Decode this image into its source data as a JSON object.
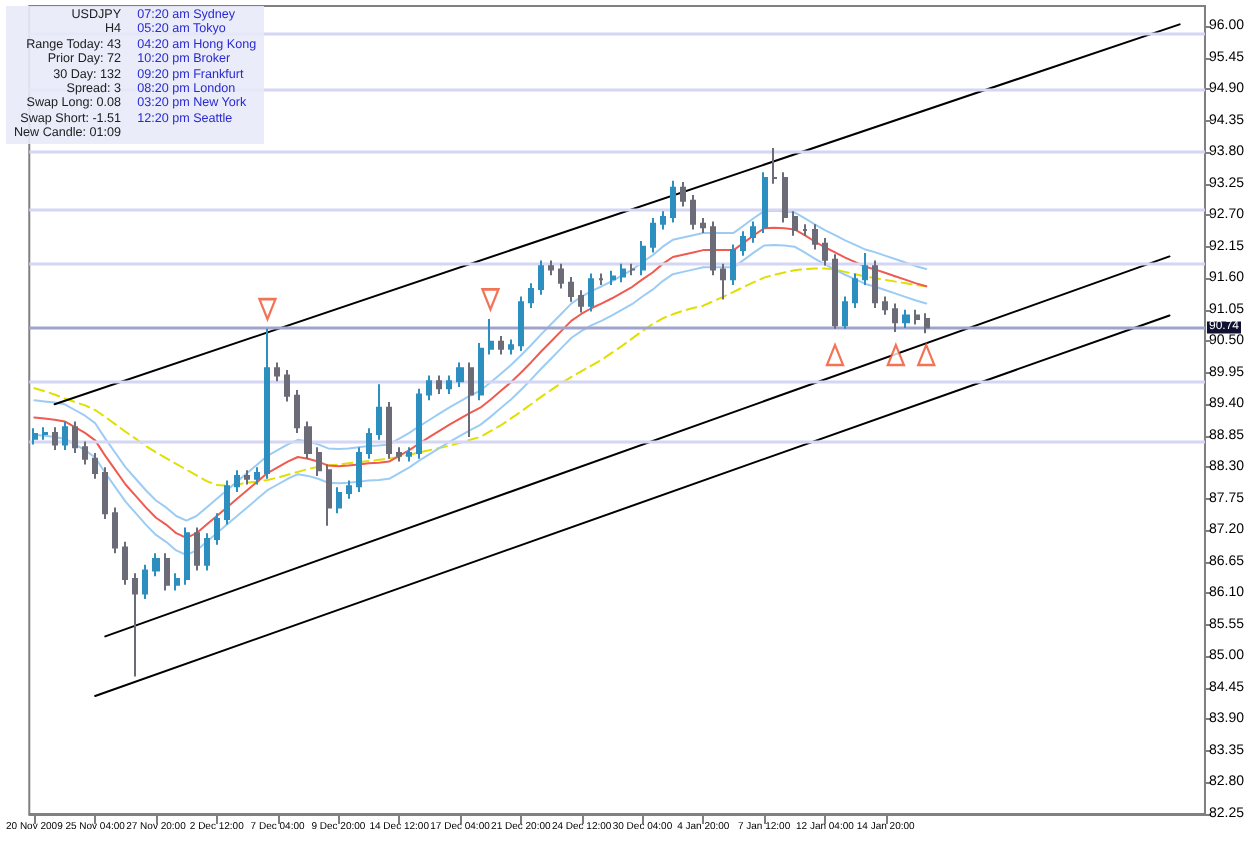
{
  "chart_data": {
    "type": "candlestick",
    "annotations": [
      "USDJPY",
      "H4",
      "Range Today: 43",
      "Prior Day: 72",
      "30 Day: 132",
      "Spread: 3",
      "Swap Long: 0.08",
      "Swap Short: -1.51",
      "New Candle: 01:09",
      "07:20 am Sydney",
      "05:20 am Tokyo",
      "04:20 am Hong Kong",
      "10:20 pm Broker",
      "09:20 pm Frankfurt",
      "08:20 pm London",
      "03:20 pm New York",
      "12:20 pm Seattle"
    ],
    "categories": [
      "20 Nov 2009",
      null,
      null,
      null,
      null,
      null,
      "25 Nov 04:00",
      null,
      null,
      null,
      null,
      null,
      "27 Nov 20:00",
      null,
      null,
      null,
      null,
      null,
      "2 Dec 12:00",
      null,
      null,
      null,
      null,
      null,
      "7 Dec 04:00",
      null,
      null,
      null,
      null,
      null,
      "9 Dec 20:00",
      null,
      null,
      null,
      null,
      null,
      "14 Dec 12:00",
      null,
      null,
      null,
      null,
      null,
      "17 Dec 04:00",
      null,
      null,
      null,
      null,
      null,
      "21 Dec 20:00",
      null,
      null,
      null,
      null,
      null,
      "24 Dec 12:00",
      null,
      null,
      null,
      null,
      null,
      "30 Dec 04:00",
      null,
      null,
      null,
      null,
      null,
      "4 Jan 20:00",
      null,
      null,
      null,
      null,
      null,
      "7 Jan 12:00",
      null,
      null,
      null,
      null,
      null,
      "12 Jan 04:00",
      null,
      null,
      null,
      null,
      null,
      "14 Jan 20:00",
      null,
      null,
      null,
      null,
      null,
      null,
      null,
      null,
      null,
      null,
      null,
      null,
      null,
      null,
      null,
      null,
      null,
      null,
      null,
      null,
      null,
      null,
      null,
      null,
      null,
      null,
      null,
      null,
      null,
      null,
      null
    ],
    "ylim": [
      82.25,
      96.35
    ],
    "yticks": [
      {
        "value": 82.25,
        "label": "82.25"
      },
      {
        "value": 82.8,
        "label": "82.80"
      },
      {
        "value": 83.35,
        "label": "83.35"
      },
      {
        "value": 83.9,
        "label": "83.90"
      },
      {
        "value": 84.45,
        "label": "84.45"
      },
      {
        "value": 85,
        "label": "85.00"
      },
      {
        "value": 85.55,
        "label": "85.55"
      },
      {
        "value": 86.1,
        "label": "86.10"
      },
      {
        "value": 86.65,
        "label": "86.65"
      },
      {
        "value": 87.2,
        "label": "87.20"
      },
      {
        "value": 87.75,
        "label": "87.75"
      },
      {
        "value": 88.3,
        "label": "88.30"
      },
      {
        "value": 88.85,
        "label": "88.85"
      },
      {
        "value": 89.4,
        "label": "89.40"
      },
      {
        "value": 89.95,
        "label": "89.95"
      },
      {
        "value": 90.5,
        "label": "90.50"
      },
      {
        "value": 91.05,
        "label": "91.05"
      },
      {
        "value": 91.6,
        "label": "91.60"
      },
      {
        "value": 92.15,
        "label": "92.15"
      },
      {
        "value": 92.7,
        "label": "92.70"
      },
      {
        "value": 93.25,
        "label": "93.25"
      },
      {
        "value": 93.8,
        "label": "93.80"
      },
      {
        "value": 94.35,
        "label": "94.35"
      },
      {
        "value": 94.9,
        "label": "94.90"
      },
      {
        "value": 95.45,
        "label": "95.45"
      },
      {
        "value": 96,
        "label": "96.00"
      }
    ],
    "ref_lines": [
      {
        "axis": "y",
        "value": 95.86,
        "color": "#d4d6f4"
      },
      {
        "axis": "y",
        "value": 94.9,
        "color": "#d4d6f4"
      },
      {
        "axis": "y",
        "value": 93.8,
        "color": "#d4d6f4"
      },
      {
        "axis": "y",
        "value": 92.8,
        "color": "#d4d6f4"
      },
      {
        "axis": "y",
        "value": 91.87,
        "color": "#d4d6f4"
      },
      {
        "axis": "y",
        "value": 89.78,
        "color": "#d4d6f4"
      },
      {
        "axis": "y",
        "value": 88.75,
        "color": "#d4d6f4"
      },
      {
        "axis": "y",
        "value": 90.74,
        "label": "90.74",
        "color": "#a0a4cc"
      }
    ],
    "series": [
      {
        "type": "candlestick",
        "ohlc": [
          [
            88.8,
            88.98,
            88.7,
            88.88
          ],
          [
            88.88,
            89.0,
            88.78,
            88.9
          ],
          [
            88.9,
            89.0,
            88.6,
            88.7
          ],
          [
            88.7,
            89.1,
            88.6,
            89.0
          ],
          [
            89.0,
            89.1,
            88.55,
            88.65
          ],
          [
            88.65,
            88.75,
            88.35,
            88.45
          ],
          [
            88.45,
            88.55,
            88.1,
            88.2
          ],
          [
            88.2,
            88.3,
            87.4,
            87.5
          ],
          [
            87.5,
            87.6,
            86.8,
            86.9
          ],
          [
            86.9,
            87.0,
            86.25,
            86.35
          ],
          [
            86.35,
            86.45,
            84.65,
            86.1
          ],
          [
            86.1,
            86.6,
            86.0,
            86.5
          ],
          [
            86.5,
            86.8,
            86.4,
            86.7
          ],
          [
            86.7,
            86.8,
            86.15,
            86.25
          ],
          [
            86.25,
            86.45,
            86.15,
            86.35
          ],
          [
            86.35,
            87.25,
            86.25,
            87.15
          ],
          [
            87.15,
            87.25,
            86.5,
            86.6
          ],
          [
            86.6,
            87.15,
            86.5,
            87.05
          ],
          [
            87.05,
            87.5,
            86.95,
            87.4
          ],
          [
            87.4,
            88.07,
            87.3,
            87.97
          ],
          [
            87.97,
            88.25,
            87.87,
            88.15
          ],
          [
            88.15,
            88.25,
            88.0,
            88.1
          ],
          [
            88.1,
            88.3,
            88.0,
            88.2
          ],
          [
            88.2,
            90.72,
            88.1,
            90.03
          ],
          [
            90.03,
            90.13,
            89.8,
            89.9
          ],
          [
            89.9,
            90.0,
            89.45,
            89.55
          ],
          [
            89.55,
            89.65,
            88.9,
            89.0
          ],
          [
            89.0,
            89.1,
            88.45,
            88.55
          ],
          [
            88.55,
            88.65,
            88.15,
            88.25
          ],
          [
            88.25,
            88.35,
            87.28,
            87.6
          ],
          [
            87.6,
            87.95,
            87.5,
            87.85
          ],
          [
            87.85,
            88.07,
            87.75,
            87.97
          ],
          [
            87.97,
            88.65,
            87.87,
            88.55
          ],
          [
            88.55,
            88.98,
            88.45,
            88.88
          ],
          [
            88.88,
            89.75,
            88.78,
            89.34
          ],
          [
            89.34,
            89.44,
            88.45,
            88.55
          ],
          [
            88.55,
            88.65,
            88.4,
            88.5
          ],
          [
            88.5,
            88.65,
            88.4,
            88.55
          ],
          [
            88.55,
            89.67,
            88.45,
            89.57
          ],
          [
            89.57,
            89.9,
            89.47,
            89.8
          ],
          [
            89.8,
            89.9,
            89.58,
            89.68
          ],
          [
            89.68,
            89.9,
            89.58,
            89.8
          ],
          [
            89.8,
            90.13,
            89.7,
            90.03
          ],
          [
            90.03,
            90.13,
            88.83,
            89.57
          ],
          [
            89.57,
            90.47,
            89.47,
            90.37
          ],
          [
            90.37,
            90.89,
            90.27,
            90.49
          ],
          [
            90.49,
            90.59,
            90.27,
            90.37
          ],
          [
            90.37,
            90.53,
            90.27,
            90.43
          ],
          [
            90.43,
            91.28,
            90.33,
            91.18
          ],
          [
            91.18,
            91.51,
            91.08,
            91.41
          ],
          [
            91.41,
            91.91,
            91.31,
            91.81
          ],
          [
            91.81,
            91.91,
            91.65,
            91.75
          ],
          [
            91.75,
            91.85,
            91.42,
            91.52
          ],
          [
            91.52,
            91.62,
            91.19,
            91.29
          ],
          [
            91.29,
            91.39,
            91.0,
            91.12
          ],
          [
            91.12,
            91.68,
            91.02,
            91.58
          ],
          [
            91.58,
            91.68,
            91.48,
            91.58
          ],
          [
            91.58,
            91.73,
            91.48,
            91.63
          ],
          [
            91.63,
            91.85,
            91.53,
            91.75
          ],
          [
            91.75,
            91.85,
            91.65,
            91.75
          ],
          [
            91.75,
            92.25,
            91.65,
            92.15
          ],
          [
            92.15,
            92.65,
            92.05,
            92.55
          ],
          [
            92.55,
            92.77,
            92.45,
            92.67
          ],
          [
            92.67,
            93.3,
            92.57,
            93.18
          ],
          [
            93.18,
            93.28,
            92.85,
            92.95
          ],
          [
            92.95,
            93.05,
            92.45,
            92.55
          ],
          [
            92.55,
            92.65,
            92.39,
            92.49
          ],
          [
            92.49,
            92.59,
            91.65,
            91.75
          ],
          [
            91.75,
            91.85,
            91.23,
            91.58
          ],
          [
            91.58,
            92.19,
            91.48,
            92.09
          ],
          [
            92.09,
            92.42,
            91.99,
            92.32
          ],
          [
            92.32,
            92.59,
            92.22,
            92.49
          ],
          [
            92.49,
            93.45,
            92.39,
            93.35
          ],
          [
            93.35,
            93.87,
            93.25,
            93.35
          ],
          [
            93.35,
            93.45,
            92.57,
            92.67
          ],
          [
            92.67,
            92.77,
            92.34,
            92.44
          ],
          [
            92.44,
            92.54,
            92.34,
            92.44
          ],
          [
            92.44,
            92.54,
            92.1,
            92.2
          ],
          [
            92.2,
            92.3,
            91.82,
            91.92
          ],
          [
            91.92,
            92.02,
            90.72,
            90.78
          ],
          [
            90.78,
            91.28,
            90.72,
            91.18
          ],
          [
            91.18,
            91.68,
            91.08,
            91.58
          ],
          [
            91.58,
            92.04,
            91.48,
            91.81
          ],
          [
            91.81,
            91.91,
            91.08,
            91.18
          ],
          [
            91.18,
            91.28,
            90.96,
            91.06
          ],
          [
            91.06,
            91.16,
            90.66,
            90.83
          ],
          [
            90.83,
            91.05,
            90.73,
            90.95
          ],
          [
            90.95,
            91.05,
            90.79,
            90.89
          ],
          [
            90.89,
            90.99,
            90.64,
            90.74
          ],
          null,
          null,
          null,
          null,
          null,
          null,
          null,
          null,
          null,
          null,
          null,
          null,
          null,
          null,
          null,
          null,
          null,
          null,
          null,
          null,
          null,
          null,
          null,
          null,
          null,
          null,
          null
        ],
        "colors": [
          "#2c8fc0",
          "#2c8fc0",
          "#6c6c78",
          "#2c8fc0",
          "#6c6c78",
          "#6c6c78",
          "#6c6c78",
          "#6c6c78",
          "#6c6c78",
          "#6c6c78",
          "#6c6c78",
          "#2c8fc0",
          "#2c8fc0",
          "#6c6c78",
          "#2c8fc0",
          "#2c8fc0",
          "#6c6c78",
          "#2c8fc0",
          "#2c8fc0",
          "#2c8fc0",
          "#2c8fc0",
          "#6c6c78",
          "#2c8fc0",
          "#2c8fc0",
          "#6c6c78",
          "#6c6c78",
          "#6c6c78",
          "#6c6c78",
          "#6c6c78",
          "#6c6c78",
          "#2c8fc0",
          "#2c8fc0",
          "#2c8fc0",
          "#2c8fc0",
          "#2c8fc0",
          "#6c6c78",
          "#6c6c78",
          "#2c8fc0",
          "#2c8fc0",
          "#2c8fc0",
          "#6c6c78",
          "#2c8fc0",
          "#2c8fc0",
          "#6c6c78",
          "#2c8fc0",
          "#2c8fc0",
          "#6c6c78",
          "#2c8fc0",
          "#2c8fc0",
          "#2c8fc0",
          "#2c8fc0",
          "#6c6c78",
          "#6c6c78",
          "#6c6c78",
          "#6c6c78",
          "#2c8fc0",
          "#6c6c78",
          "#2c8fc0",
          "#2c8fc0",
          "#6c6c78",
          "#2c8fc0",
          "#2c8fc0",
          "#2c8fc0",
          "#2c8fc0",
          "#6c6c78",
          "#6c6c78",
          "#6c6c78",
          "#6c6c78",
          "#6c6c78",
          "#2c8fc0",
          "#2c8fc0",
          "#2c8fc0",
          "#2c8fc0",
          "#6c6c78",
          "#6c6c78",
          "#6c6c78",
          "#6c6c78",
          "#6c6c78",
          "#6c6c78",
          "#6c6c78",
          "#2c8fc0",
          "#2c8fc0",
          "#2c8fc0",
          "#6c6c78",
          "#6c6c78",
          "#6c6c78",
          "#2c8fc0",
          "#6c6c78",
          "#6c6c78",
          null,
          null,
          null,
          null,
          null,
          null,
          null,
          null,
          null,
          null,
          null,
          null,
          null,
          null,
          null,
          null,
          null,
          null,
          null,
          null,
          null,
          null,
          null,
          null,
          null,
          null,
          null
        ]
      },
      {
        "type": "line",
        "color": "#e0e000",
        "line_style": "dashed",
        "marker": "none",
        "values": [
          89.68,
          89.63,
          89.57,
          89.5,
          89.44,
          89.38,
          89.3,
          89.18,
          89.05,
          88.92,
          88.8,
          88.67,
          88.56,
          88.46,
          88.36,
          88.26,
          88.16,
          88.06,
          87.99,
          87.98,
          88.0,
          88.03,
          88.05,
          88.08,
          88.12,
          88.17,
          88.22,
          88.27,
          88.31,
          88.33,
          88.35,
          88.37,
          88.39,
          88.41,
          88.43,
          88.45,
          88.48,
          88.52,
          88.56,
          88.6,
          88.64,
          88.68,
          88.73,
          88.78,
          88.83,
          88.93,
          89.03,
          89.15,
          89.27,
          89.4,
          89.53,
          89.65,
          89.77,
          89.88,
          89.98,
          90.08,
          90.18,
          90.3,
          90.42,
          90.55,
          90.68,
          90.8,
          90.9,
          90.97,
          91.03,
          91.08,
          91.12,
          91.2,
          91.28,
          91.36,
          91.45,
          91.53,
          91.61,
          91.66,
          91.7,
          91.74,
          91.76,
          91.77,
          91.77,
          91.75,
          91.71,
          91.67,
          91.63,
          91.6,
          91.57,
          91.54,
          91.51,
          91.48,
          91.46,
          null,
          null,
          null,
          null,
          null,
          null,
          null,
          null,
          null,
          null,
          null,
          null,
          null,
          null,
          null,
          null,
          null,
          null,
          null,
          null,
          null,
          null,
          null,
          null,
          null,
          null,
          null
        ]
      },
      {
        "type": "line",
        "color": "#9cccf4",
        "line_style": "solid",
        "marker": "none",
        "values": [
          89.47,
          89.45,
          89.43,
          89.4,
          89.3,
          89.2,
          89.07,
          88.8,
          88.55,
          88.3,
          88.1,
          87.9,
          87.72,
          87.6,
          87.45,
          87.37,
          87.45,
          87.6,
          87.75,
          87.9,
          88.05,
          88.2,
          88.35,
          88.5,
          88.6,
          88.7,
          88.78,
          88.75,
          88.7,
          88.63,
          88.62,
          88.63,
          88.65,
          88.67,
          88.68,
          88.7,
          88.8,
          88.9,
          89.02,
          89.13,
          89.24,
          89.35,
          89.45,
          89.55,
          89.64,
          89.78,
          89.93,
          90.08,
          90.25,
          90.43,
          90.62,
          90.8,
          90.98,
          91.16,
          91.28,
          91.38,
          91.46,
          91.55,
          91.65,
          91.75,
          91.88,
          92.0,
          92.15,
          92.27,
          92.31,
          92.35,
          92.39,
          92.39,
          92.39,
          92.39,
          92.52,
          92.65,
          92.77,
          92.78,
          92.77,
          92.75,
          92.65,
          92.54,
          92.44,
          92.35,
          92.26,
          92.18,
          92.1,
          92.05,
          91.99,
          91.93,
          91.87,
          91.81,
          91.76,
          null,
          null,
          null,
          null,
          null,
          null,
          null,
          null,
          null,
          null,
          null,
          null,
          null,
          null,
          null,
          null,
          null,
          null,
          null,
          null,
          null,
          null,
          null,
          null,
          null,
          null,
          null
        ]
      },
      {
        "type": "line",
        "color": "#f05a50",
        "line_style": "solid",
        "marker": "none",
        "values": [
          89.17,
          89.15,
          89.13,
          89.1,
          89.0,
          88.9,
          88.77,
          88.5,
          88.25,
          88.0,
          87.8,
          87.6,
          87.42,
          87.3,
          87.15,
          87.07,
          87.15,
          87.3,
          87.45,
          87.6,
          87.75,
          87.9,
          88.05,
          88.2,
          88.3,
          88.4,
          88.48,
          88.45,
          88.4,
          88.33,
          88.32,
          88.33,
          88.35,
          88.37,
          88.38,
          88.4,
          88.5,
          88.6,
          88.72,
          88.83,
          88.94,
          89.05,
          89.15,
          89.25,
          89.34,
          89.48,
          89.63,
          89.78,
          89.95,
          90.13,
          90.32,
          90.5,
          90.68,
          90.86,
          90.98,
          91.08,
          91.16,
          91.25,
          91.35,
          91.45,
          91.58,
          91.7,
          91.85,
          91.97,
          92.01,
          92.05,
          92.09,
          92.09,
          92.09,
          92.09,
          92.22,
          92.35,
          92.47,
          92.48,
          92.47,
          92.45,
          92.35,
          92.24,
          92.14,
          92.05,
          91.96,
          91.88,
          91.8,
          91.75,
          91.69,
          91.63,
          91.57,
          91.51,
          91.46,
          null,
          null,
          null,
          null,
          null,
          null,
          null,
          null,
          null,
          null,
          null,
          null,
          null,
          null,
          null,
          null,
          null,
          null,
          null,
          null,
          null,
          null,
          null,
          null,
          null,
          null,
          null
        ]
      },
      {
        "type": "line",
        "color": "#9cccf4",
        "line_style": "solid",
        "marker": "none",
        "values": [
          88.87,
          88.85,
          88.83,
          88.8,
          88.7,
          88.6,
          88.47,
          88.2,
          87.95,
          87.7,
          87.5,
          87.3,
          87.12,
          87.0,
          86.85,
          86.77,
          86.85,
          87.0,
          87.15,
          87.3,
          87.45,
          87.6,
          87.75,
          87.9,
          88.0,
          88.1,
          88.18,
          88.15,
          88.1,
          88.03,
          88.02,
          88.03,
          88.05,
          88.07,
          88.08,
          88.1,
          88.2,
          88.3,
          88.42,
          88.53,
          88.64,
          88.75,
          88.85,
          88.95,
          89.04,
          89.18,
          89.33,
          89.48,
          89.65,
          89.83,
          90.02,
          90.2,
          90.38,
          90.56,
          90.68,
          90.78,
          90.86,
          90.95,
          91.05,
          91.15,
          91.28,
          91.4,
          91.55,
          91.67,
          91.71,
          91.75,
          91.79,
          91.79,
          91.79,
          91.79,
          91.92,
          92.05,
          92.17,
          92.18,
          92.17,
          92.15,
          92.05,
          91.94,
          91.84,
          91.75,
          91.66,
          91.58,
          91.5,
          91.45,
          91.39,
          91.33,
          91.27,
          91.21,
          91.16,
          null,
          null,
          null,
          null,
          null,
          null,
          null,
          null,
          null,
          null,
          null,
          null,
          null,
          null,
          null,
          null,
          null,
          null,
          null,
          null,
          null,
          null,
          null,
          null,
          null,
          null,
          null
        ]
      },
      {
        "type": "line",
        "color": "#000000",
        "line_style": "solid",
        "marker": "none",
        "values": [
          null,
          null,
          89.4,
          null,
          null,
          null,
          null,
          null,
          null,
          null,
          null,
          null,
          null,
          null,
          null,
          null,
          null,
          null,
          null,
          null,
          null,
          null,
          null,
          null,
          null,
          null,
          null,
          null,
          null,
          null,
          null,
          null,
          null,
          null,
          null,
          null,
          null,
          null,
          null,
          null,
          null,
          null,
          null,
          null,
          null,
          null,
          null,
          null,
          null,
          null,
          null,
          null,
          null,
          null,
          null,
          null,
          null,
          null,
          null,
          null,
          null,
          null,
          null,
          null,
          null,
          null,
          null,
          null,
          null,
          null,
          null,
          null,
          null,
          null,
          null,
          null,
          null,
          null,
          null,
          null,
          null,
          null,
          null,
          null,
          null,
          null,
          null,
          null,
          null,
          null,
          null,
          null,
          null,
          null,
          null,
          null,
          null,
          null,
          null,
          null,
          null,
          null,
          null,
          null,
          null,
          null,
          null,
          null,
          null,
          null,
          null,
          null,
          null,
          96.03,
          null,
          null
        ]
      },
      {
        "type": "line",
        "color": "#000000",
        "line_style": "solid",
        "marker": "none",
        "values": [
          null,
          null,
          null,
          null,
          null,
          null,
          null,
          85.35,
          null,
          null,
          null,
          null,
          null,
          null,
          null,
          null,
          null,
          null,
          null,
          null,
          null,
          null,
          null,
          null,
          null,
          null,
          null,
          null,
          null,
          null,
          null,
          null,
          null,
          null,
          null,
          null,
          null,
          null,
          null,
          null,
          null,
          null,
          null,
          null,
          null,
          null,
          null,
          null,
          null,
          null,
          null,
          null,
          null,
          null,
          null,
          null,
          null,
          null,
          null,
          null,
          null,
          null,
          null,
          null,
          null,
          null,
          null,
          null,
          null,
          null,
          null,
          null,
          null,
          null,
          null,
          null,
          null,
          null,
          null,
          null,
          null,
          null,
          null,
          null,
          null,
          null,
          null,
          null,
          null,
          null,
          null,
          null,
          null,
          null,
          null,
          null,
          null,
          null,
          null,
          null,
          null,
          null,
          null,
          null,
          null,
          null,
          null,
          null,
          null,
          null,
          null,
          null,
          91.98,
          null,
          null,
          null
        ]
      },
      {
        "type": "line",
        "color": "#000000",
        "line_style": "solid",
        "marker": "none",
        "values": [
          null,
          null,
          null,
          null,
          null,
          null,
          84.31,
          null,
          null,
          null,
          null,
          null,
          null,
          null,
          null,
          null,
          null,
          null,
          null,
          null,
          null,
          null,
          null,
          null,
          null,
          null,
          null,
          null,
          null,
          null,
          null,
          null,
          null,
          null,
          null,
          null,
          null,
          null,
          null,
          null,
          null,
          null,
          null,
          null,
          null,
          null,
          null,
          null,
          null,
          null,
          null,
          null,
          null,
          null,
          null,
          null,
          null,
          null,
          null,
          null,
          null,
          null,
          null,
          null,
          null,
          null,
          null,
          null,
          null,
          null,
          null,
          null,
          null,
          null,
          null,
          null,
          null,
          null,
          null,
          null,
          null,
          null,
          null,
          null,
          null,
          null,
          null,
          null,
          null,
          null,
          null,
          null,
          null,
          null,
          null,
          null,
          null,
          null,
          null,
          null,
          null,
          null,
          null,
          null,
          null,
          null,
          null,
          null,
          null,
          null,
          null,
          null,
          90.95,
          null,
          null,
          null
        ]
      },
      {
        "type": "scatter",
        "color": "#f0502c",
        "marker": "triangle",
        "values": [
          null,
          null,
          null,
          null,
          null,
          null,
          null,
          null,
          null,
          null,
          null,
          null,
          null,
          null,
          null,
          null,
          null,
          null,
          null,
          null,
          null,
          null,
          null,
          91.06,
          null,
          null,
          null,
          null,
          null,
          null,
          null,
          null,
          null,
          null,
          null,
          null,
          null,
          null,
          null,
          null,
          null,
          null,
          null,
          null,
          null,
          91.23,
          null,
          null,
          null,
          null,
          null,
          null,
          null,
          null,
          null,
          null,
          null,
          null,
          null,
          null,
          null,
          null,
          null,
          null,
          null,
          null,
          null,
          null,
          null,
          null,
          null,
          null,
          null,
          null,
          null,
          null,
          null,
          null,
          null,
          90.26,
          null,
          null,
          null,
          null,
          null,
          90.26,
          null,
          null,
          90.26,
          null,
          null,
          null,
          null,
          null,
          null,
          null,
          null,
          null,
          null,
          null,
          null,
          null,
          null,
          null,
          null,
          null,
          null,
          null,
          null,
          null,
          null,
          null,
          null,
          null,
          null,
          null
        ]
      }
    ]
  }
}
